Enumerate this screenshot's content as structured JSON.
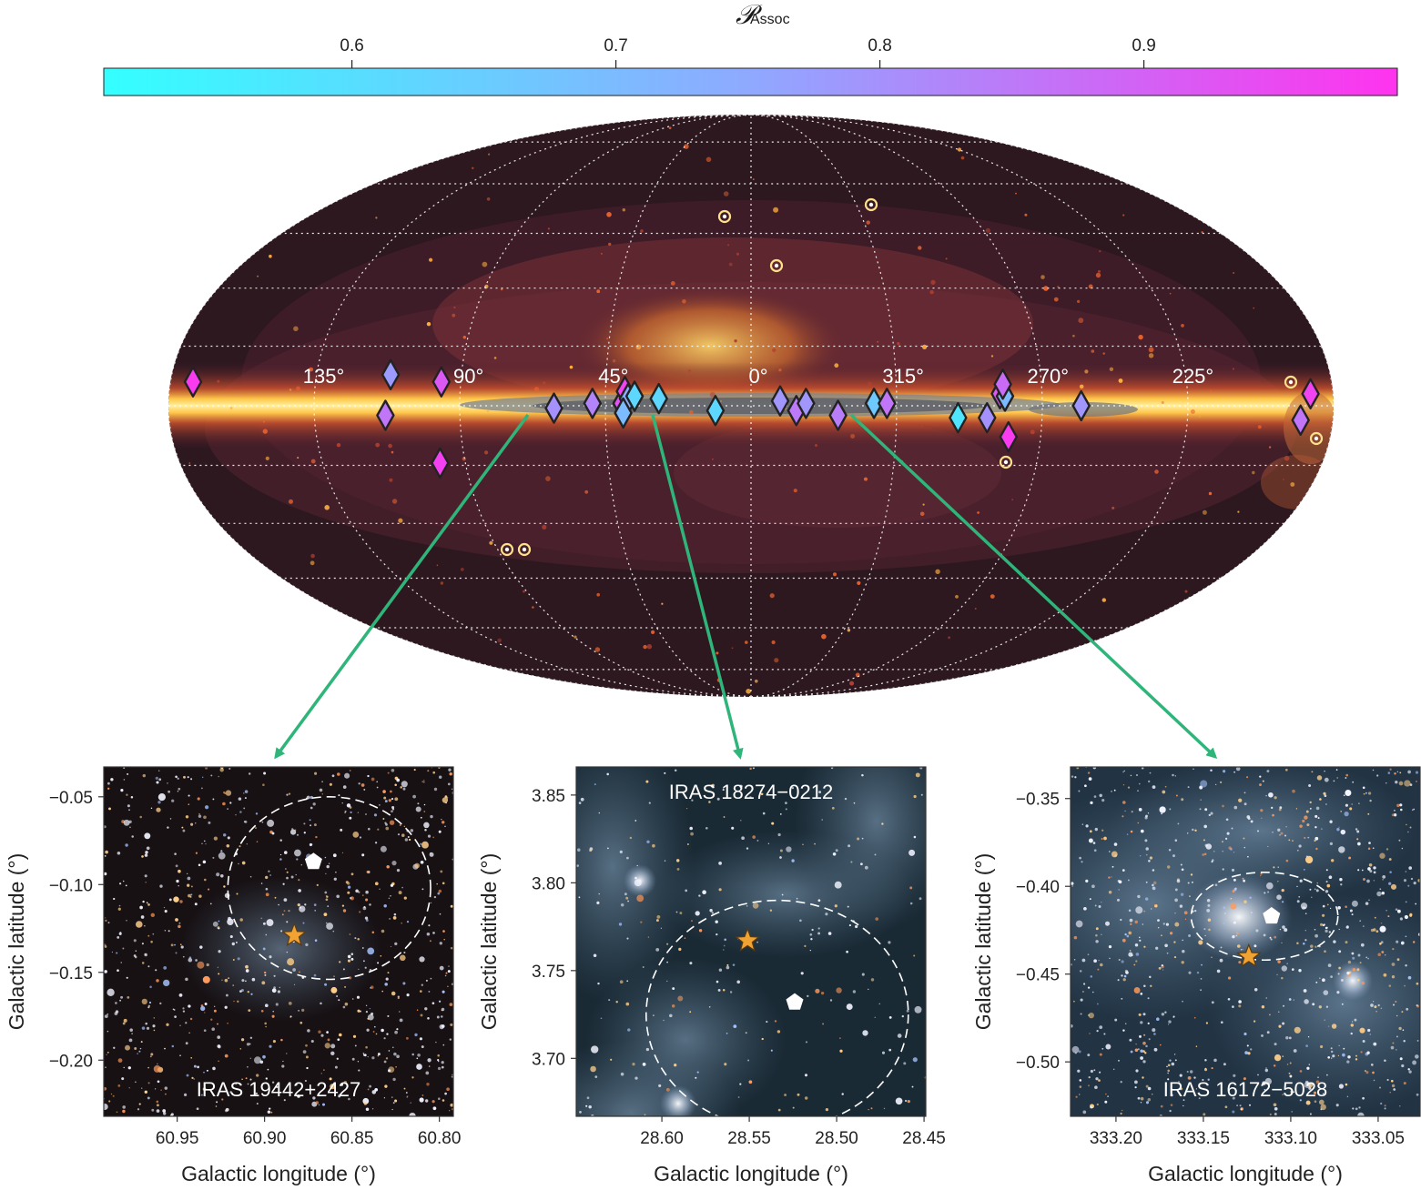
{
  "colorbar": {
    "label_main": "𝒫",
    "label_sub": "Assoc",
    "ticks": [
      "0.6",
      "0.7",
      "0.8",
      "0.9"
    ],
    "tick_values": [
      0.6,
      0.7,
      0.8,
      0.9
    ],
    "vmin": 0.506,
    "vmax": 0.996,
    "color_low": "#33ffff",
    "color_mid": "#8fa9ff",
    "color_high": "#ff33ee"
  },
  "skymap": {
    "projection": "mollweide",
    "longitude_labels": [
      "135°",
      "90°",
      "45°",
      "0°",
      "315°",
      "270°",
      "225°"
    ],
    "longitude_values": [
      135,
      90,
      45,
      0,
      315,
      270,
      225
    ],
    "sources": [
      {
        "l": 173,
        "b": 1.0,
        "p": 0.98
      },
      {
        "l": 112,
        "b": 1.3,
        "p": 0.78
      },
      {
        "l": 113,
        "b": -0.4,
        "p": 0.86
      },
      {
        "l": 96,
        "b": 1.0,
        "p": 0.92
      },
      {
        "l": 98,
        "b": -2.4,
        "p": 0.97
      },
      {
        "l": 60.9,
        "b": -0.1,
        "p": 0.8
      },
      {
        "l": 49,
        "b": 0.1,
        "p": 0.83
      },
      {
        "l": 40,
        "b": 0.1,
        "p": 0.93
      },
      {
        "l": 39,
        "b": 0.6,
        "p": 0.96
      },
      {
        "l": 38,
        "b": 0.3,
        "p": 0.74
      },
      {
        "l": 39.5,
        "b": -0.3,
        "p": 0.7
      },
      {
        "l": 36,
        "b": 0.4,
        "p": 0.62
      },
      {
        "l": 28.5,
        "b": 0.3,
        "p": 0.62
      },
      {
        "l": 11,
        "b": -0.2,
        "p": 0.62
      },
      {
        "l": 351,
        "b": 0.2,
        "p": 0.79
      },
      {
        "l": 346,
        "b": -0.2,
        "p": 0.85
      },
      {
        "l": 343,
        "b": 0.1,
        "p": 0.79
      },
      {
        "l": 333.1,
        "b": -0.4,
        "p": 0.84
      },
      {
        "l": 322,
        "b": 0.1,
        "p": 0.66
      },
      {
        "l": 318,
        "b": 0.1,
        "p": 0.86
      },
      {
        "l": 296,
        "b": -0.5,
        "p": 0.58
      },
      {
        "l": 287,
        "b": -0.5,
        "p": 0.8
      },
      {
        "l": 283,
        "b": 0.5,
        "p": 0.92
      },
      {
        "l": 281.5,
        "b": 0.4,
        "p": 0.7
      },
      {
        "l": 280,
        "b": -1.3,
        "p": 0.98
      },
      {
        "l": 282,
        "b": 0.9,
        "p": 0.88
      },
      {
        "l": 258,
        "b": 0.0,
        "p": 0.79
      },
      {
        "l": 190,
        "b": -0.6,
        "p": 0.86
      },
      {
        "l": 187,
        "b": 0.5,
        "p": 0.96
      }
    ]
  },
  "panels": [
    {
      "name": "panel-iras-19442",
      "label": "IRAS 19442+2427",
      "xlabel": "Galactic longitude (°)",
      "ylabel": "Galactic latitude (°)",
      "xticks": [
        "60.95",
        "60.90",
        "60.85",
        "60.80"
      ],
      "xtick_values": [
        60.95,
        60.9,
        60.85,
        60.8
      ],
      "yticks": [
        "−0.05",
        "−0.10",
        "−0.15",
        "−0.20"
      ],
      "ytick_values": [
        -0.05,
        -0.1,
        -0.15,
        -0.2
      ],
      "xlim": [
        60.992,
        60.792
      ],
      "ylim": [
        -0.232,
        -0.033
      ],
      "star": {
        "l": 60.883,
        "b": -0.129
      },
      "pentagon": {
        "l": 60.872,
        "b": -0.087
      },
      "ellipse": {
        "l": 60.863,
        "b": -0.102,
        "rl": 0.058,
        "rb": 0.052
      },
      "background": "#171114"
    },
    {
      "name": "panel-iras-18274",
      "label": "IRAS 18274−0212",
      "xlabel": "Galactic longitude (°)",
      "ylabel": "Galactic latitude (°)",
      "xticks": [
        "28.60",
        "28.55",
        "28.50",
        "28.45"
      ],
      "xtick_values": [
        28.6,
        28.55,
        28.5,
        28.45
      ],
      "yticks": [
        "3.85",
        "3.80",
        "3.75",
        "3.70"
      ],
      "ytick_values": [
        3.85,
        3.8,
        3.75,
        3.7
      ],
      "xlim": [
        28.649,
        28.449
      ],
      "ylim": [
        3.667,
        3.866
      ],
      "star": {
        "l": 28.551,
        "b": 3.767
      },
      "pentagon": {
        "l": 28.524,
        "b": 3.732
      },
      "ellipse": {
        "l": 28.534,
        "b": 3.725,
        "rl": 0.075,
        "rb": 0.065
      },
      "background": "#1a2a35"
    },
    {
      "name": "panel-iras-16172",
      "label": "IRAS 16172−5028",
      "xlabel": "Galactic longitude (°)",
      "ylabel": "Galactic latitude (°)",
      "xticks": [
        "333.20",
        "333.15",
        "333.10",
        "333.05"
      ],
      "xtick_values": [
        333.2,
        333.15,
        333.1,
        333.05
      ],
      "yticks": [
        "−0.35",
        "−0.40",
        "−0.45",
        "−0.50"
      ],
      "ytick_values": [
        -0.35,
        -0.4,
        -0.45,
        -0.5
      ],
      "xlim": [
        333.226,
        333.026
      ],
      "ylim": [
        -0.531,
        -0.332
      ],
      "star": {
        "l": 333.124,
        "b": -0.44
      },
      "pentagon": {
        "l": 333.111,
        "b": -0.417
      },
      "ellipse": {
        "l": 333.115,
        "b": -0.417,
        "rl": 0.042,
        "rb": 0.025
      },
      "background": "#223444"
    }
  ],
  "colors": {
    "arrow": "#2fb57a",
    "star": "#f0a232",
    "axis": "#333333"
  }
}
